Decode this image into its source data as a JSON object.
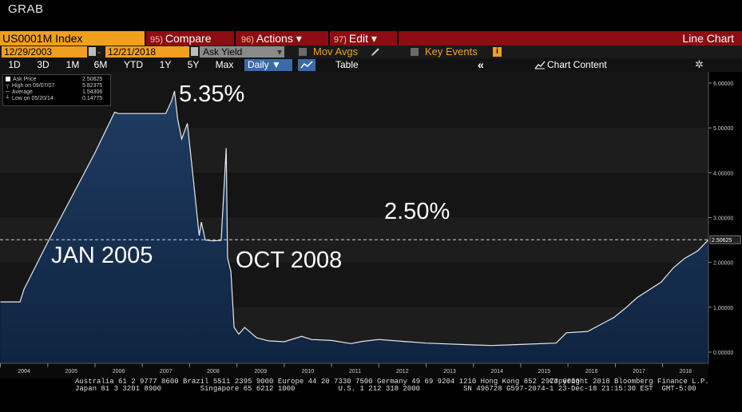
{
  "window": {
    "title": "GRAB"
  },
  "toolbar": {
    "ticker": "US0001M Index",
    "compare_num": "95)",
    "compare": "Compare",
    "actions_num": "96)",
    "actions": "Actions ▾",
    "edit_num": "97)",
    "edit": "Edit ▾",
    "view": "Line Chart"
  },
  "dates": {
    "start": "12/29/2003",
    "sep": "-",
    "end": "12/21/2018"
  },
  "field": {
    "value": "Ask Yield",
    "arrow": "▾"
  },
  "options": {
    "mov_avgs": "Mov Avgs",
    "key_events": "Key Events",
    "info": "i"
  },
  "ranges": [
    "1D",
    "3D",
    "1M",
    "6M",
    "YTD",
    "1Y",
    "5Y",
    "Max"
  ],
  "frequency": "Daily ▼",
  "table_label": "Table",
  "collapse": "«",
  "chart_content": "Chart Content",
  "gear": "✲",
  "colors": {
    "orange": "#f0a01e",
    "red": "#8c0d12",
    "area_top": "#1f3c63",
    "area_bottom": "#0f2440",
    "plot_bg": "#151515"
  },
  "legend": [
    {
      "label": "Ask Price",
      "value": "2.50625"
    },
    {
      "label": "High on 09/07/07",
      "value": "5.82375"
    },
    {
      "label": "Average",
      "value": "1.54306"
    },
    {
      "label": "Low on 05/20/14",
      "value": "0.14775"
    }
  ],
  "annotations": {
    "peak": "5.35%",
    "current": "2.50%",
    "jan2005": "JAN 2005",
    "oct2008": "OCT 2008"
  },
  "footer": {
    "line1": "Australia 61 2 9777 8600 Brazil 5511 2395 9000 Europe 44 20 7330 7500 Germany 49 69 9204 1210 Hong Kong 852 2977 6000",
    "line2": "Japan 81 3 3201 8900         Singapore 65 6212 1000          U.S. 1 212 318 2000",
    "line3": "                    Copyright 2018 Bloomberg Finance L.P.",
    "line4": "SN 496728 G597-2074-1 23-Dec-18 21:15:30 EST  GMT-5:00"
  },
  "chart_data": {
    "type": "area",
    "series": [
      {
        "name": "Ask Price",
        "x": [
          "2004-01-01",
          "2004-06-01",
          "2004-07-01",
          "2005-01-01",
          "2006-01-01",
          "2006-06-01",
          "2006-07-01",
          "2007-01-01",
          "2007-07-01",
          "2007-08-15",
          "2007-09-07",
          "2007-10-01",
          "2007-11-01",
          "2007-12-15",
          "2008-02-01",
          "2008-03-15",
          "2008-04-01",
          "2008-05-01",
          "2008-07-01",
          "2008-09-01",
          "2008-10-10",
          "2008-10-20",
          "2008-11-15",
          "2008-12-10",
          "2009-01-15",
          "2009-03-01",
          "2009-06-01",
          "2009-09-01",
          "2010-01-01",
          "2010-05-15",
          "2010-08-01",
          "2011-01-01",
          "2011-06-01",
          "2011-09-01",
          "2012-01-01",
          "2013-01-01",
          "2014-01-01",
          "2014-05-20",
          "2015-01-01",
          "2015-10-01",
          "2015-12-20",
          "2016-06-01",
          "2016-12-20",
          "2017-03-20",
          "2017-06-20",
          "2017-12-20",
          "2018-03-25",
          "2018-06-20",
          "2018-09-30",
          "2018-12-21"
        ],
        "values": [
          1.12,
          1.12,
          1.4,
          2.45,
          4.45,
          5.35,
          5.32,
          5.32,
          5.32,
          5.6,
          5.82,
          5.2,
          4.75,
          5.1,
          3.8,
          2.6,
          2.9,
          2.5,
          2.48,
          2.49,
          4.55,
          2.1,
          1.8,
          0.55,
          0.4,
          0.55,
          0.32,
          0.25,
          0.23,
          0.35,
          0.28,
          0.26,
          0.19,
          0.24,
          0.28,
          0.2,
          0.16,
          0.148,
          0.17,
          0.2,
          0.43,
          0.46,
          0.77,
          0.98,
          1.22,
          1.56,
          1.88,
          2.09,
          2.26,
          2.506
        ]
      }
    ],
    "xlabel": "",
    "ylabel": "",
    "xlim": [
      "2003-12-29",
      "2018-12-21"
    ],
    "ylim": [
      -0.25,
      6.25
    ],
    "yticks": [
      "0.00000",
      "1.00000",
      "2.00000",
      "3.00000",
      "4.00000",
      "5.00000",
      "6.00000"
    ],
    "xticks": [
      "2004",
      "2005",
      "2006",
      "2007",
      "2008",
      "2009",
      "2010",
      "2011",
      "2012",
      "2013",
      "2014",
      "2015",
      "2016",
      "2017",
      "2018"
    ],
    "current_value": "2.50625",
    "grid": false,
    "legend_position": "top-left"
  }
}
